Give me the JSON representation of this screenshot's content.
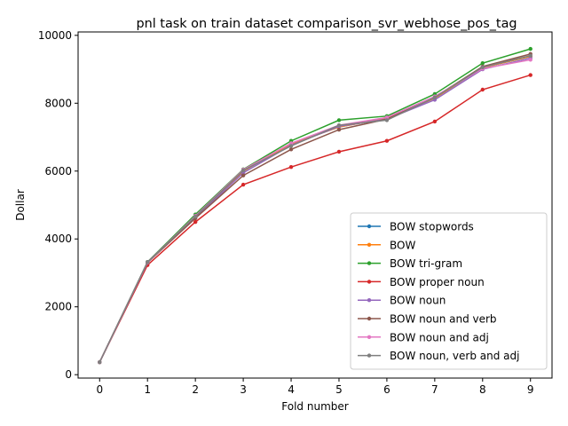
{
  "chart_data": {
    "type": "line",
    "title": "pnl task on train dataset comparison_svr_webhose_pos_tag",
    "xlabel": "Fold number",
    "ylabel": "Dollar",
    "x": [
      0,
      1,
      2,
      3,
      4,
      5,
      6,
      7,
      8,
      9
    ],
    "xlim": [
      -0.45,
      9.45
    ],
    "ylim": [
      -100,
      10100
    ],
    "xticks": [
      "0",
      "1",
      "2",
      "3",
      "4",
      "5",
      "6",
      "7",
      "8",
      "9"
    ],
    "yticks": [
      "0",
      "2000",
      "4000",
      "6000",
      "8000",
      "10000"
    ],
    "grid": false,
    "legend_position": "lower-right",
    "series": [
      {
        "name": "BOW stopwords",
        "color": "#1f77b4",
        "values": [
          370,
          3310,
          4650,
          6000,
          6800,
          7300,
          7550,
          8150,
          9050,
          9380
        ]
      },
      {
        "name": "BOW",
        "color": "#ff7f0e",
        "values": [
          370,
          3310,
          4650,
          6000,
          6800,
          7300,
          7550,
          8150,
          9050,
          9380
        ]
      },
      {
        "name": "BOW tri-gram",
        "color": "#2ca02c",
        "values": [
          370,
          3320,
          4720,
          6050,
          6890,
          7500,
          7620,
          8270,
          9180,
          9600
        ]
      },
      {
        "name": "BOW proper noun",
        "color": "#d62728",
        "values": [
          370,
          3230,
          4500,
          5600,
          6120,
          6570,
          6890,
          7460,
          8400,
          8830
        ]
      },
      {
        "name": "BOW noun",
        "color": "#9467bd",
        "values": [
          370,
          3300,
          4620,
          5950,
          6760,
          7320,
          7530,
          8100,
          9000,
          9330
        ]
      },
      {
        "name": "BOW noun and verb",
        "color": "#8c564b",
        "values": [
          370,
          3300,
          4610,
          5870,
          6640,
          7220,
          7530,
          8180,
          9080,
          9450
        ]
      },
      {
        "name": "BOW noun and adj",
        "color": "#e377c2",
        "values": [
          370,
          3310,
          4680,
          6040,
          6820,
          7350,
          7580,
          8200,
          9020,
          9280
        ]
      },
      {
        "name": "BOW noun, verb and adj",
        "color": "#7f7f7f",
        "values": [
          370,
          3320,
          4660,
          6020,
          6740,
          7350,
          7500,
          8170,
          9060,
          9400
        ]
      }
    ]
  }
}
